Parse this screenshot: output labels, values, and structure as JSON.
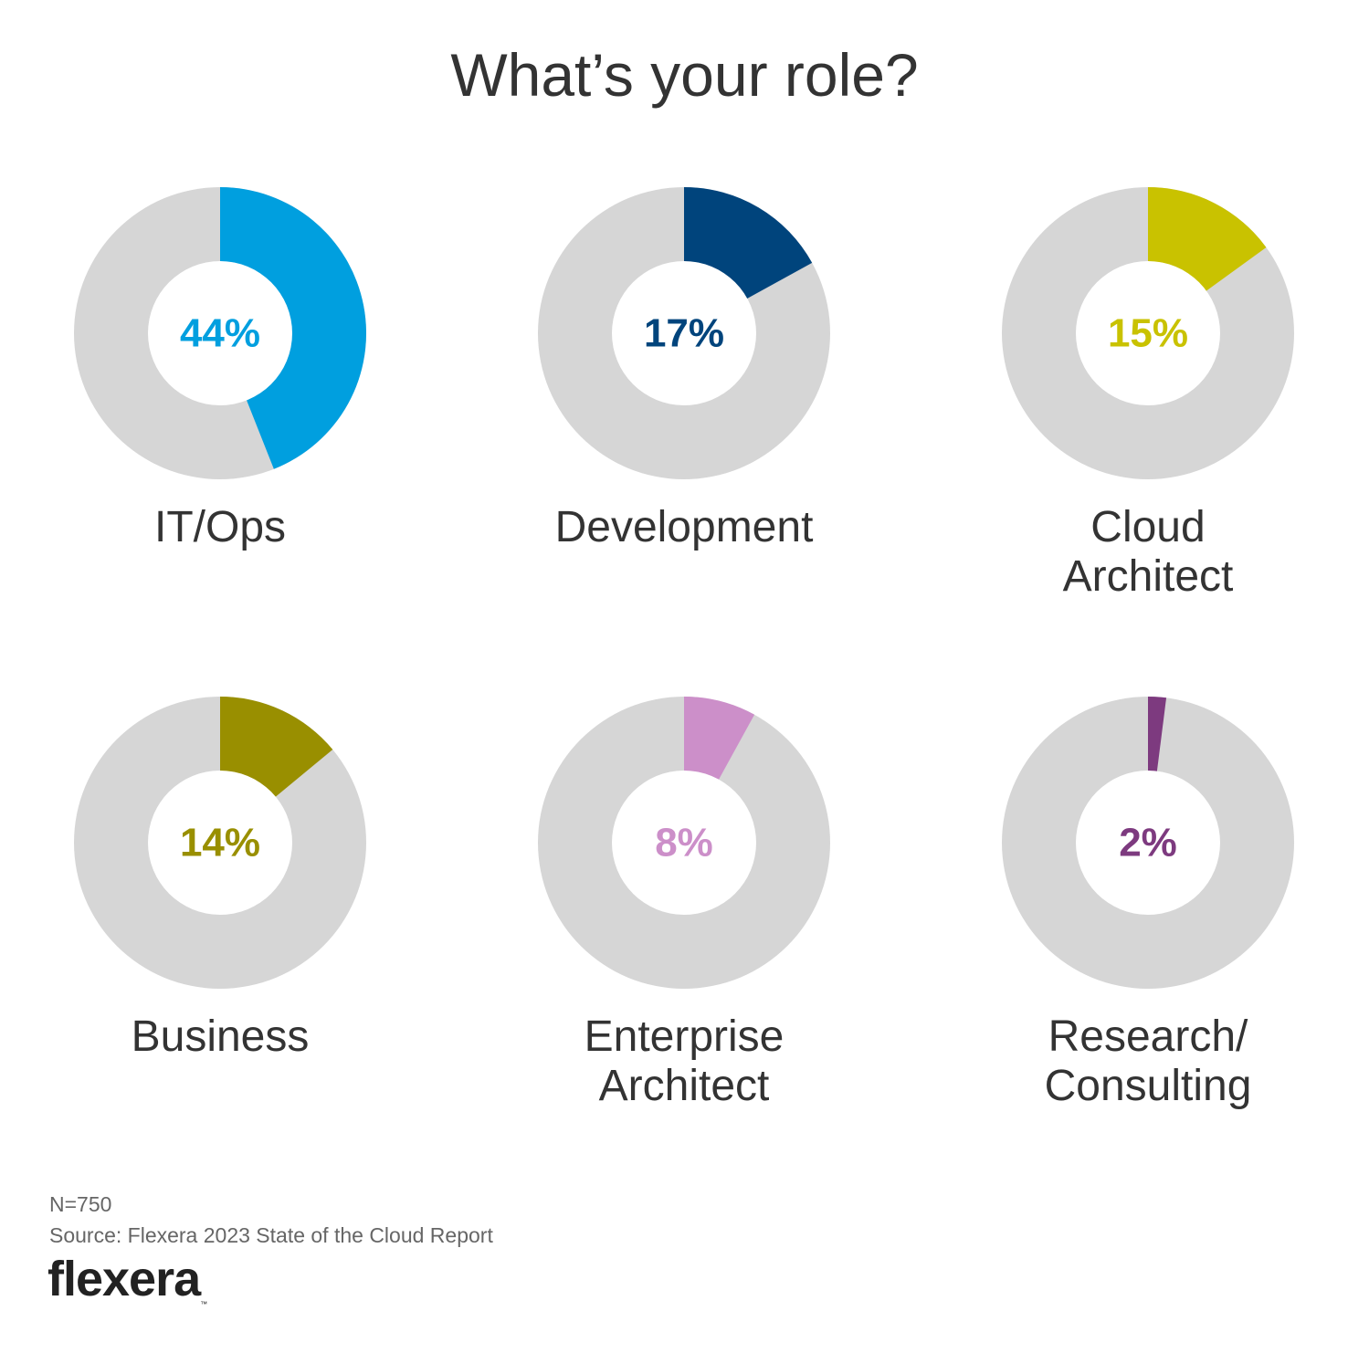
{
  "title": "What’s your role?",
  "chart_data": {
    "type": "pie",
    "title": "What’s your role?",
    "categories": [
      "IT/Ops",
      "Development",
      "Cloud Architect",
      "Business",
      "Enterprise Architect",
      "Research/ Consulting"
    ],
    "values": [
      44,
      17,
      15,
      14,
      8,
      2
    ],
    "unit": "%",
    "items": [
      {
        "label_lines": [
          "IT/Ops"
        ],
        "value": 44,
        "display": "44%",
        "color": "#009fdf"
      },
      {
        "label_lines": [
          "Development"
        ],
        "value": 17,
        "display": "17%",
        "color": "#00447c"
      },
      {
        "label_lines": [
          "Cloud",
          "Architect"
        ],
        "value": 15,
        "display": "15%",
        "color": "#c9c200"
      },
      {
        "label_lines": [
          "Business"
        ],
        "value": 14,
        "display": "14%",
        "color": "#998f00"
      },
      {
        "label_lines": [
          "Enterprise",
          "Architect"
        ],
        "value": 8,
        "display": "8%",
        "color": "#cc8fc9"
      },
      {
        "label_lines": [
          "Research/",
          "Consulting"
        ],
        "value": 2,
        "display": "2%",
        "color": "#7d3a7f"
      }
    ],
    "track_color": "#d6d6d6"
  },
  "footer": {
    "n": "N=750",
    "source": "Source: Flexera 2023 State of the Cloud Report"
  },
  "logo": {
    "text": "flexera",
    "tm": "™"
  }
}
